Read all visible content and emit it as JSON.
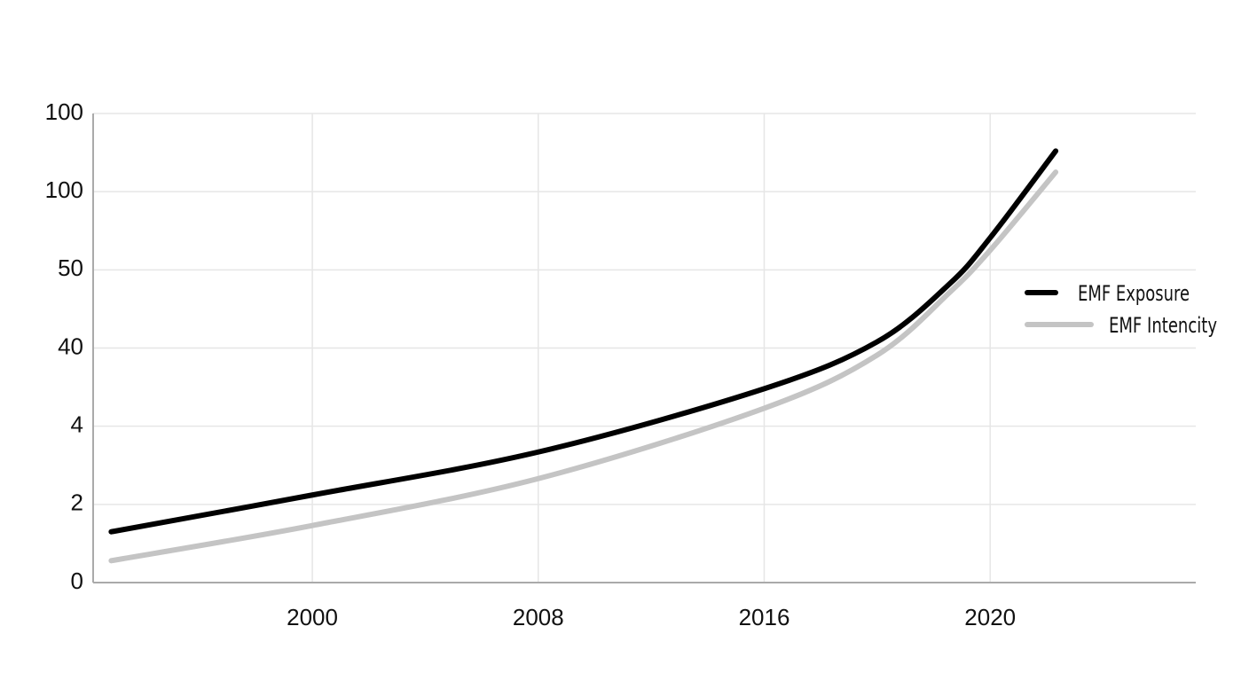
{
  "chart_data": {
    "type": "line",
    "x": [
      0.11,
      1.0,
      2.0,
      3.0,
      3.5,
      3.82,
      4.0,
      4.29
    ],
    "series": [
      {
        "name": "EMF Exposure",
        "color": "#000000",
        "values": [
          0.65,
          1.12,
          1.67,
          2.48,
          3.08,
          3.82,
          4.41,
          5.52
        ]
      },
      {
        "name": "EMF Intencity",
        "color": "#c4c4c4",
        "values": [
          0.28,
          0.73,
          1.33,
          2.23,
          2.91,
          3.71,
          4.25,
          5.25
        ]
      }
    ],
    "xlim": [
      0.03,
      4.91
    ],
    "xticks": [
      {
        "value": 1,
        "label": "2000"
      },
      {
        "value": 2,
        "label": "2008"
      },
      {
        "value": 3,
        "label": "2016"
      },
      {
        "value": 4,
        "label": "2020"
      }
    ],
    "ylim": [
      0,
      6
    ],
    "yticks": [
      {
        "value": 0,
        "label": "0"
      },
      {
        "value": 1,
        "label": "2"
      },
      {
        "value": 2,
        "label": "4"
      },
      {
        "value": 3,
        "label": "40"
      },
      {
        "value": 4,
        "label": "50"
      },
      {
        "value": 5,
        "label": "100"
      },
      {
        "value": 6,
        "label": "100"
      }
    ],
    "grid": true,
    "legend": "right"
  }
}
